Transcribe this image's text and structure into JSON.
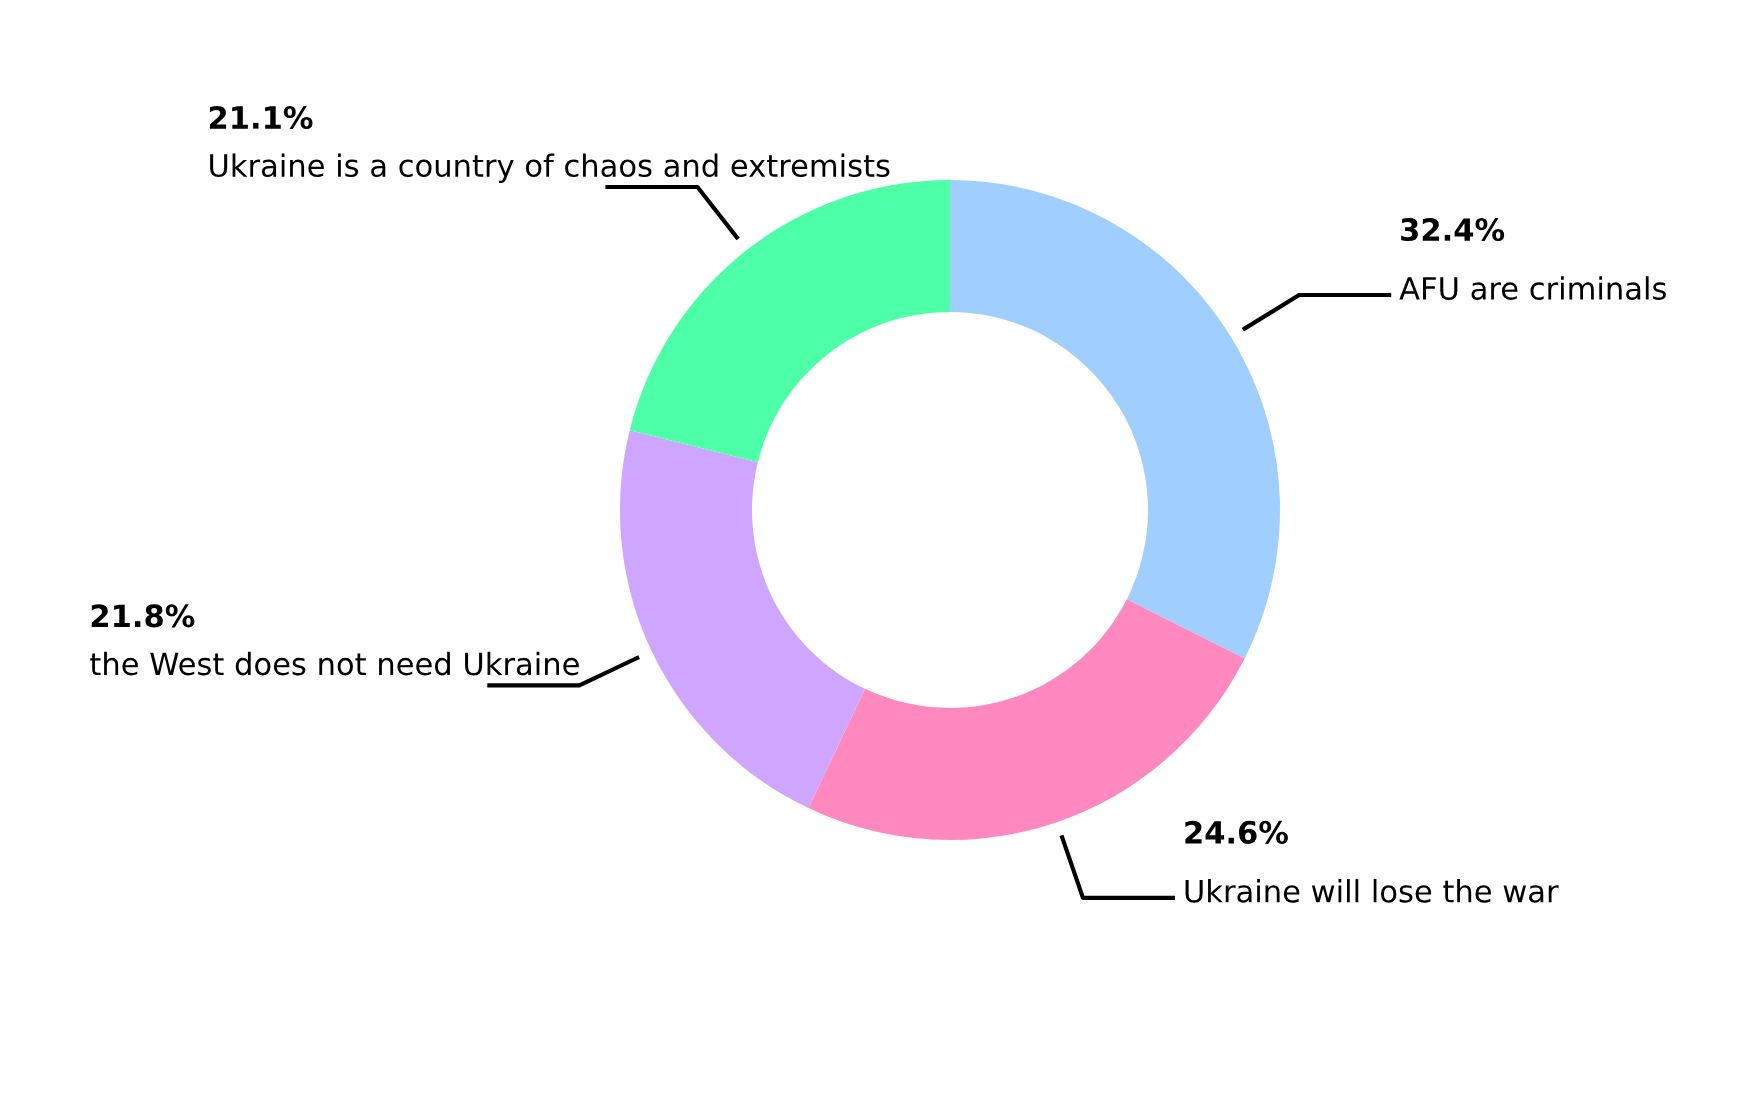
{
  "chart_data": {
    "type": "donut",
    "categories": [
      "AFU are criminals",
      "Ukraine will lose the war",
      "the West does not need Ukraine",
      "Ukraine is a country of chaos and extremists"
    ],
    "values": [
      32.4,
      24.6,
      21.8,
      21.1
    ],
    "colors": [
      "#a0cfff",
      "#ff88bf",
      "#cfa6ff",
      "#4dffa6"
    ],
    "value_labels": [
      "32.4%",
      "24.6%",
      "21.8%",
      "21.1%"
    ],
    "legend": false
  }
}
